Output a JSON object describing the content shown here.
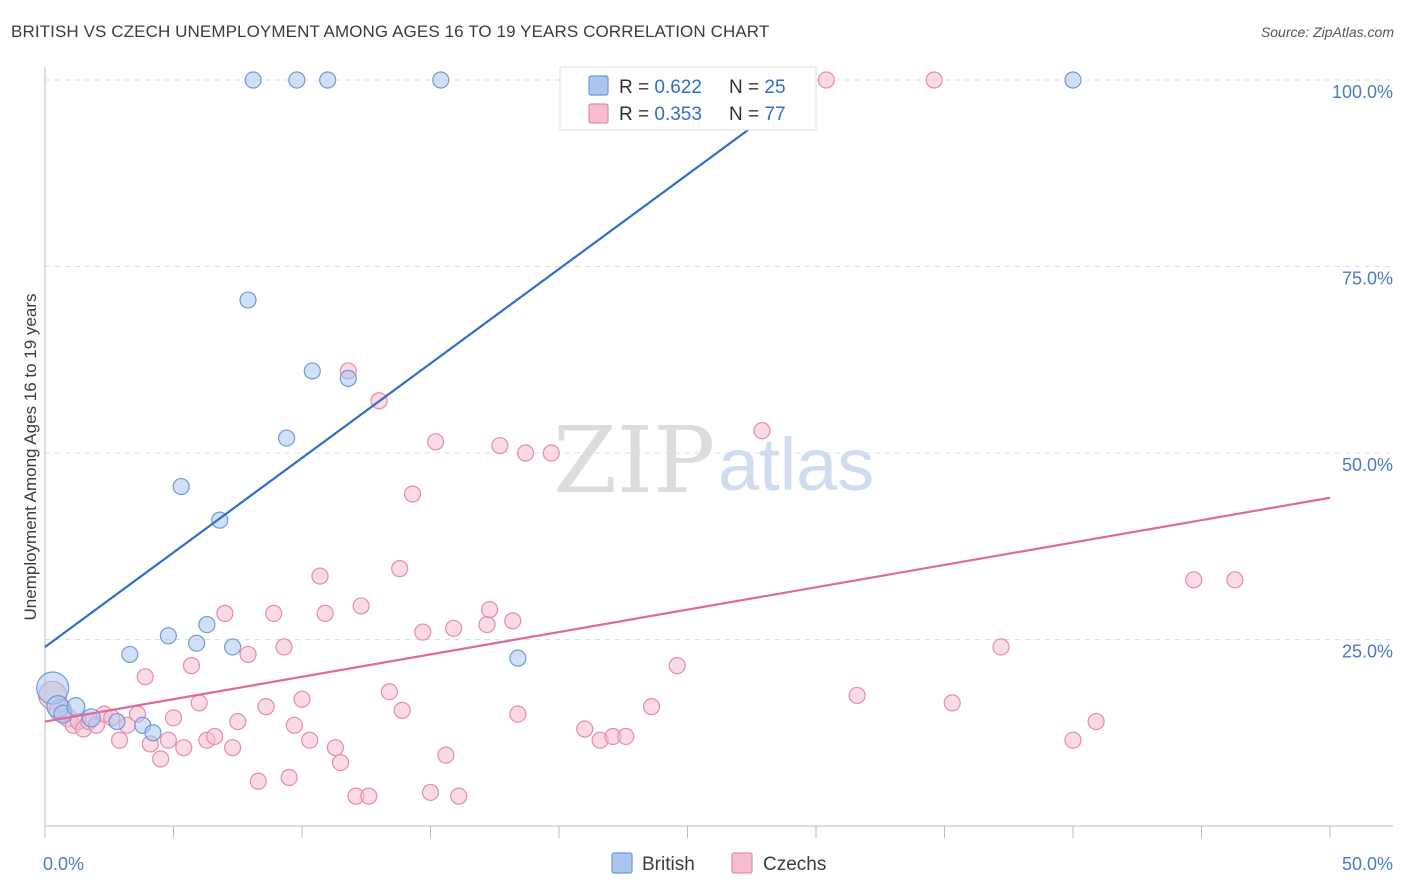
{
  "header": {
    "title": "BRITISH VS CZECH UNEMPLOYMENT AMONG AGES 16 TO 19 YEARS CORRELATION CHART",
    "source": "Source: ZipAtlas.com"
  },
  "watermark": {
    "zip": "ZIP",
    "atlas": "atlas"
  },
  "colors": {
    "british_fill": "#a9c6ee",
    "british_stroke": "#6f9ad6",
    "british_line": "#2f6fc9",
    "czech_fill": "#f6bcd0",
    "czech_stroke": "#e88aaa",
    "czech_line": "#e0699a",
    "value_text": "#2f6fc9",
    "grid": "#dddddd"
  },
  "legend": {
    "rows": [
      {
        "r_label": "R = ",
        "r_value": "0.622",
        "n_label": "N = ",
        "n_value": "25"
      },
      {
        "r_label": "R = ",
        "r_value": "0.353",
        "n_label": "N = ",
        "n_value": "77"
      }
    ],
    "bottom": [
      "British",
      "Czechs"
    ]
  },
  "chart_data": {
    "type": "scatter",
    "xlabel": "",
    "ylabel": "Unemployment Among Ages 16 to 19 years",
    "xlim": [
      0,
      50
    ],
    "ylim": [
      0,
      100
    ],
    "x_tick_labels": [
      "0.0%",
      "50.0%"
    ],
    "y_ticks": [
      25,
      50,
      75,
      100
    ],
    "y_tick_labels": [
      "25.0%",
      "50.0%",
      "75.0%",
      "100.0%"
    ],
    "grid": true,
    "legend_position": "top-center",
    "series": [
      {
        "name": "British",
        "r": 0.622,
        "n": 25,
        "trend": {
          "x": [
            0,
            30
          ],
          "y": [
            24,
            100
          ]
        },
        "points": [
          {
            "x": 0.3,
            "y": 18.5,
            "s": 16
          },
          {
            "x": 0.5,
            "y": 16,
            "s": 11
          },
          {
            "x": 0.7,
            "y": 15,
            "s": 9
          },
          {
            "x": 1.2,
            "y": 16,
            "s": 9
          },
          {
            "x": 1.8,
            "y": 14.5,
            "s": 9
          },
          {
            "x": 2.8,
            "y": 14,
            "s": 8
          },
          {
            "x": 3.3,
            "y": 23,
            "s": 8
          },
          {
            "x": 3.8,
            "y": 13.5,
            "s": 8
          },
          {
            "x": 4.2,
            "y": 12.5,
            "s": 8
          },
          {
            "x": 4.8,
            "y": 25.5,
            "s": 8
          },
          {
            "x": 5.3,
            "y": 45.5,
            "s": 8
          },
          {
            "x": 5.9,
            "y": 24.5,
            "s": 8
          },
          {
            "x": 6.3,
            "y": 27,
            "s": 8
          },
          {
            "x": 6.8,
            "y": 41,
            "s": 8
          },
          {
            "x": 7.3,
            "y": 24,
            "s": 8
          },
          {
            "x": 7.9,
            "y": 70.5,
            "s": 8
          },
          {
            "x": 8.1,
            "y": 100,
            "s": 8
          },
          {
            "x": 9.4,
            "y": 52,
            "s": 8
          },
          {
            "x": 9.8,
            "y": 100,
            "s": 8
          },
          {
            "x": 10.4,
            "y": 61,
            "s": 8
          },
          {
            "x": 11.0,
            "y": 100,
            "s": 8
          },
          {
            "x": 11.8,
            "y": 60,
            "s": 8
          },
          {
            "x": 15.4,
            "y": 100,
            "s": 8
          },
          {
            "x": 18.4,
            "y": 22.5,
            "s": 8
          },
          {
            "x": 40.0,
            "y": 100,
            "s": 8
          }
        ]
      },
      {
        "name": "Czechs",
        "r": 0.353,
        "n": 77,
        "trend": {
          "x": [
            0,
            50
          ],
          "y": [
            14,
            44
          ]
        },
        "points": [
          {
            "x": 0.3,
            "y": 17.5,
            "s": 14
          },
          {
            "x": 0.6,
            "y": 15.5,
            "s": 11
          },
          {
            "x": 0.9,
            "y": 14.5,
            "s": 9
          },
          {
            "x": 1.1,
            "y": 13.5,
            "s": 8
          },
          {
            "x": 1.3,
            "y": 14,
            "s": 8
          },
          {
            "x": 1.5,
            "y": 13,
            "s": 8
          },
          {
            "x": 1.7,
            "y": 14,
            "s": 8
          },
          {
            "x": 2.0,
            "y": 13.5,
            "s": 8
          },
          {
            "x": 2.3,
            "y": 15,
            "s": 8
          },
          {
            "x": 2.6,
            "y": 14.5,
            "s": 8
          },
          {
            "x": 2.9,
            "y": 11.5,
            "s": 8
          },
          {
            "x": 3.2,
            "y": 13.5,
            "s": 8
          },
          {
            "x": 3.6,
            "y": 15,
            "s": 8
          },
          {
            "x": 3.9,
            "y": 20,
            "s": 8
          },
          {
            "x": 4.1,
            "y": 11,
            "s": 8
          },
          {
            "x": 4.5,
            "y": 9,
            "s": 8
          },
          {
            "x": 4.8,
            "y": 11.5,
            "s": 8
          },
          {
            "x": 5.0,
            "y": 14.5,
            "s": 8
          },
          {
            "x": 5.4,
            "y": 10.5,
            "s": 8
          },
          {
            "x": 5.7,
            "y": 21.5,
            "s": 8
          },
          {
            "x": 6.0,
            "y": 16.5,
            "s": 8
          },
          {
            "x": 6.3,
            "y": 11.5,
            "s": 8
          },
          {
            "x": 6.6,
            "y": 12,
            "s": 8
          },
          {
            "x": 7.0,
            "y": 28.5,
            "s": 8
          },
          {
            "x": 7.3,
            "y": 10.5,
            "s": 8
          },
          {
            "x": 7.5,
            "y": 14,
            "s": 8
          },
          {
            "x": 7.9,
            "y": 23,
            "s": 8
          },
          {
            "x": 8.3,
            "y": 6,
            "s": 8
          },
          {
            "x": 8.6,
            "y": 16,
            "s": 8
          },
          {
            "x": 8.9,
            "y": 28.5,
            "s": 8
          },
          {
            "x": 9.3,
            "y": 24,
            "s": 8
          },
          {
            "x": 9.5,
            "y": 6.5,
            "s": 8
          },
          {
            "x": 9.7,
            "y": 13.5,
            "s": 8
          },
          {
            "x": 10.0,
            "y": 17,
            "s": 8
          },
          {
            "x": 10.3,
            "y": 11.5,
            "s": 8
          },
          {
            "x": 10.7,
            "y": 33.5,
            "s": 8
          },
          {
            "x": 10.9,
            "y": 28.5,
            "s": 8
          },
          {
            "x": 11.3,
            "y": 10.5,
            "s": 8
          },
          {
            "x": 11.5,
            "y": 8.5,
            "s": 8
          },
          {
            "x": 11.8,
            "y": 61,
            "s": 8
          },
          {
            "x": 12.1,
            "y": 4,
            "s": 8
          },
          {
            "x": 12.3,
            "y": 29.5,
            "s": 8
          },
          {
            "x": 12.6,
            "y": 4,
            "s": 8
          },
          {
            "x": 13.0,
            "y": 57,
            "s": 8
          },
          {
            "x": 13.4,
            "y": 18,
            "s": 8
          },
          {
            "x": 13.8,
            "y": 34.5,
            "s": 8
          },
          {
            "x": 13.9,
            "y": 15.5,
            "s": 8
          },
          {
            "x": 14.3,
            "y": 44.5,
            "s": 8
          },
          {
            "x": 14.7,
            "y": 26,
            "s": 8
          },
          {
            "x": 15.0,
            "y": 4.5,
            "s": 8
          },
          {
            "x": 15.2,
            "y": 51.5,
            "s": 8
          },
          {
            "x": 15.6,
            "y": 9.5,
            "s": 8
          },
          {
            "x": 15.9,
            "y": 26.5,
            "s": 8
          },
          {
            "x": 16.1,
            "y": 4,
            "s": 8
          },
          {
            "x": 17.2,
            "y": 27,
            "s": 8
          },
          {
            "x": 17.3,
            "y": 29,
            "s": 8
          },
          {
            "x": 17.7,
            "y": 51,
            "s": 8
          },
          {
            "x": 18.2,
            "y": 27.5,
            "s": 8
          },
          {
            "x": 18.4,
            "y": 15,
            "s": 8
          },
          {
            "x": 18.7,
            "y": 50,
            "s": 8
          },
          {
            "x": 19.7,
            "y": 50,
            "s": 8
          },
          {
            "x": 21.0,
            "y": 13,
            "s": 8
          },
          {
            "x": 21.6,
            "y": 11.5,
            "s": 8
          },
          {
            "x": 22.1,
            "y": 12,
            "s": 8
          },
          {
            "x": 22.6,
            "y": 12,
            "s": 8
          },
          {
            "x": 23.6,
            "y": 16,
            "s": 8
          },
          {
            "x": 24.6,
            "y": 21.5,
            "s": 8
          },
          {
            "x": 27.9,
            "y": 53,
            "s": 8
          },
          {
            "x": 30.4,
            "y": 100,
            "s": 8
          },
          {
            "x": 31.6,
            "y": 17.5,
            "s": 8
          },
          {
            "x": 34.6,
            "y": 100,
            "s": 8
          },
          {
            "x": 35.3,
            "y": 16.5,
            "s": 8
          },
          {
            "x": 37.2,
            "y": 24,
            "s": 8
          },
          {
            "x": 40.0,
            "y": 11.5,
            "s": 8
          },
          {
            "x": 40.9,
            "y": 14,
            "s": 8
          },
          {
            "x": 44.7,
            "y": 33,
            "s": 8
          },
          {
            "x": 46.3,
            "y": 33,
            "s": 8
          }
        ]
      }
    ]
  }
}
